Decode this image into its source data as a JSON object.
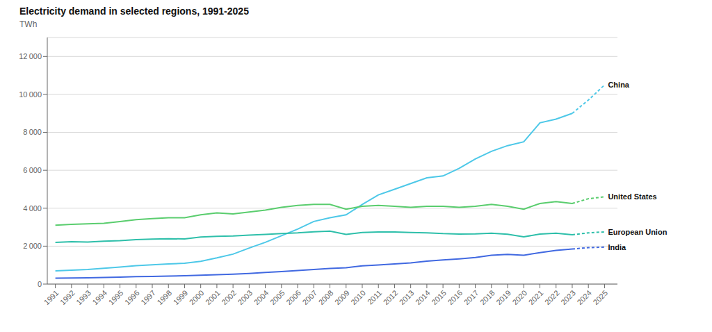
{
  "chart_data": {
    "type": "line",
    "title": "Electricity demand in selected regions, 1991-2025",
    "y_label": "TWh",
    "x": [
      1991,
      1992,
      1993,
      1994,
      1995,
      1996,
      1997,
      1998,
      1999,
      2000,
      2001,
      2002,
      2003,
      2004,
      2005,
      2006,
      2007,
      2008,
      2009,
      2010,
      2011,
      2012,
      2013,
      2014,
      2015,
      2016,
      2017,
      2018,
      2019,
      2020,
      2021,
      2022,
      2023,
      2024,
      2025
    ],
    "xlim": [
      1990.5,
      2025.8
    ],
    "xticks": [
      1991,
      1992,
      1993,
      1994,
      1995,
      1996,
      1997,
      1998,
      1999,
      2000,
      2001,
      2002,
      2003,
      2004,
      2005,
      2006,
      2007,
      2008,
      2009,
      2010,
      2011,
      2012,
      2013,
      2014,
      2015,
      2016,
      2017,
      2018,
      2019,
      2020,
      2021,
      2022,
      2023,
      2024,
      2025
    ],
    "ylim": [
      0,
      13000
    ],
    "yticks": [
      0,
      {
        "value": 2000,
        "label": "2 000"
      },
      {
        "value": 4000,
        "label": "4 000"
      },
      {
        "value": 6000,
        "label": "6 000"
      },
      {
        "value": 8000,
        "label": "8 000"
      },
      {
        "value": 10000,
        "label": "10 000"
      },
      {
        "value": 12000,
        "label": "12 000"
      }
    ],
    "grid": true,
    "line_style": "solid",
    "dashed_from": 2023,
    "series": [
      {
        "name": "China",
        "color": "#4dc8e8",
        "values": [
          700,
          730,
          770,
          830,
          900,
          970,
          1020,
          1060,
          1100,
          1200,
          1380,
          1580,
          1900,
          2200,
          2550,
          2900,
          3300,
          3500,
          3650,
          4200,
          4700,
          5000,
          5300,
          5600,
          5700,
          6100,
          6600,
          7000,
          7300,
          7500,
          8500,
          8700,
          9000,
          9700,
          10500
        ]
      },
      {
        "name": "United States",
        "color": "#5acd6e",
        "values": [
          3100,
          3150,
          3180,
          3200,
          3300,
          3400,
          3450,
          3500,
          3500,
          3650,
          3750,
          3700,
          3800,
          3900,
          4050,
          4150,
          4200,
          4200,
          3950,
          4100,
          4150,
          4100,
          4050,
          4100,
          4100,
          4050,
          4100,
          4200,
          4100,
          3950,
          4250,
          4350,
          4250,
          4500,
          4600
        ]
      },
      {
        "name": "European Union",
        "color": "#2ebfaa",
        "values": [
          2200,
          2230,
          2220,
          2260,
          2290,
          2340,
          2370,
          2390,
          2380,
          2480,
          2520,
          2540,
          2580,
          2620,
          2660,
          2700,
          2760,
          2790,
          2620,
          2720,
          2750,
          2750,
          2720,
          2700,
          2660,
          2640,
          2650,
          2680,
          2630,
          2490,
          2640,
          2680,
          2600,
          2700,
          2750
        ]
      },
      {
        "name": "India",
        "color": "#4169e1",
        "values": [
          310,
          320,
          330,
          350,
          370,
          390,
          400,
          420,
          440,
          470,
          490,
          520,
          560,
          610,
          660,
          710,
          770,
          820,
          860,
          960,
          1010,
          1060,
          1120,
          1210,
          1270,
          1330,
          1400,
          1520,
          1570,
          1520,
          1660,
          1780,
          1850,
          1920,
          1950
        ]
      }
    ]
  }
}
